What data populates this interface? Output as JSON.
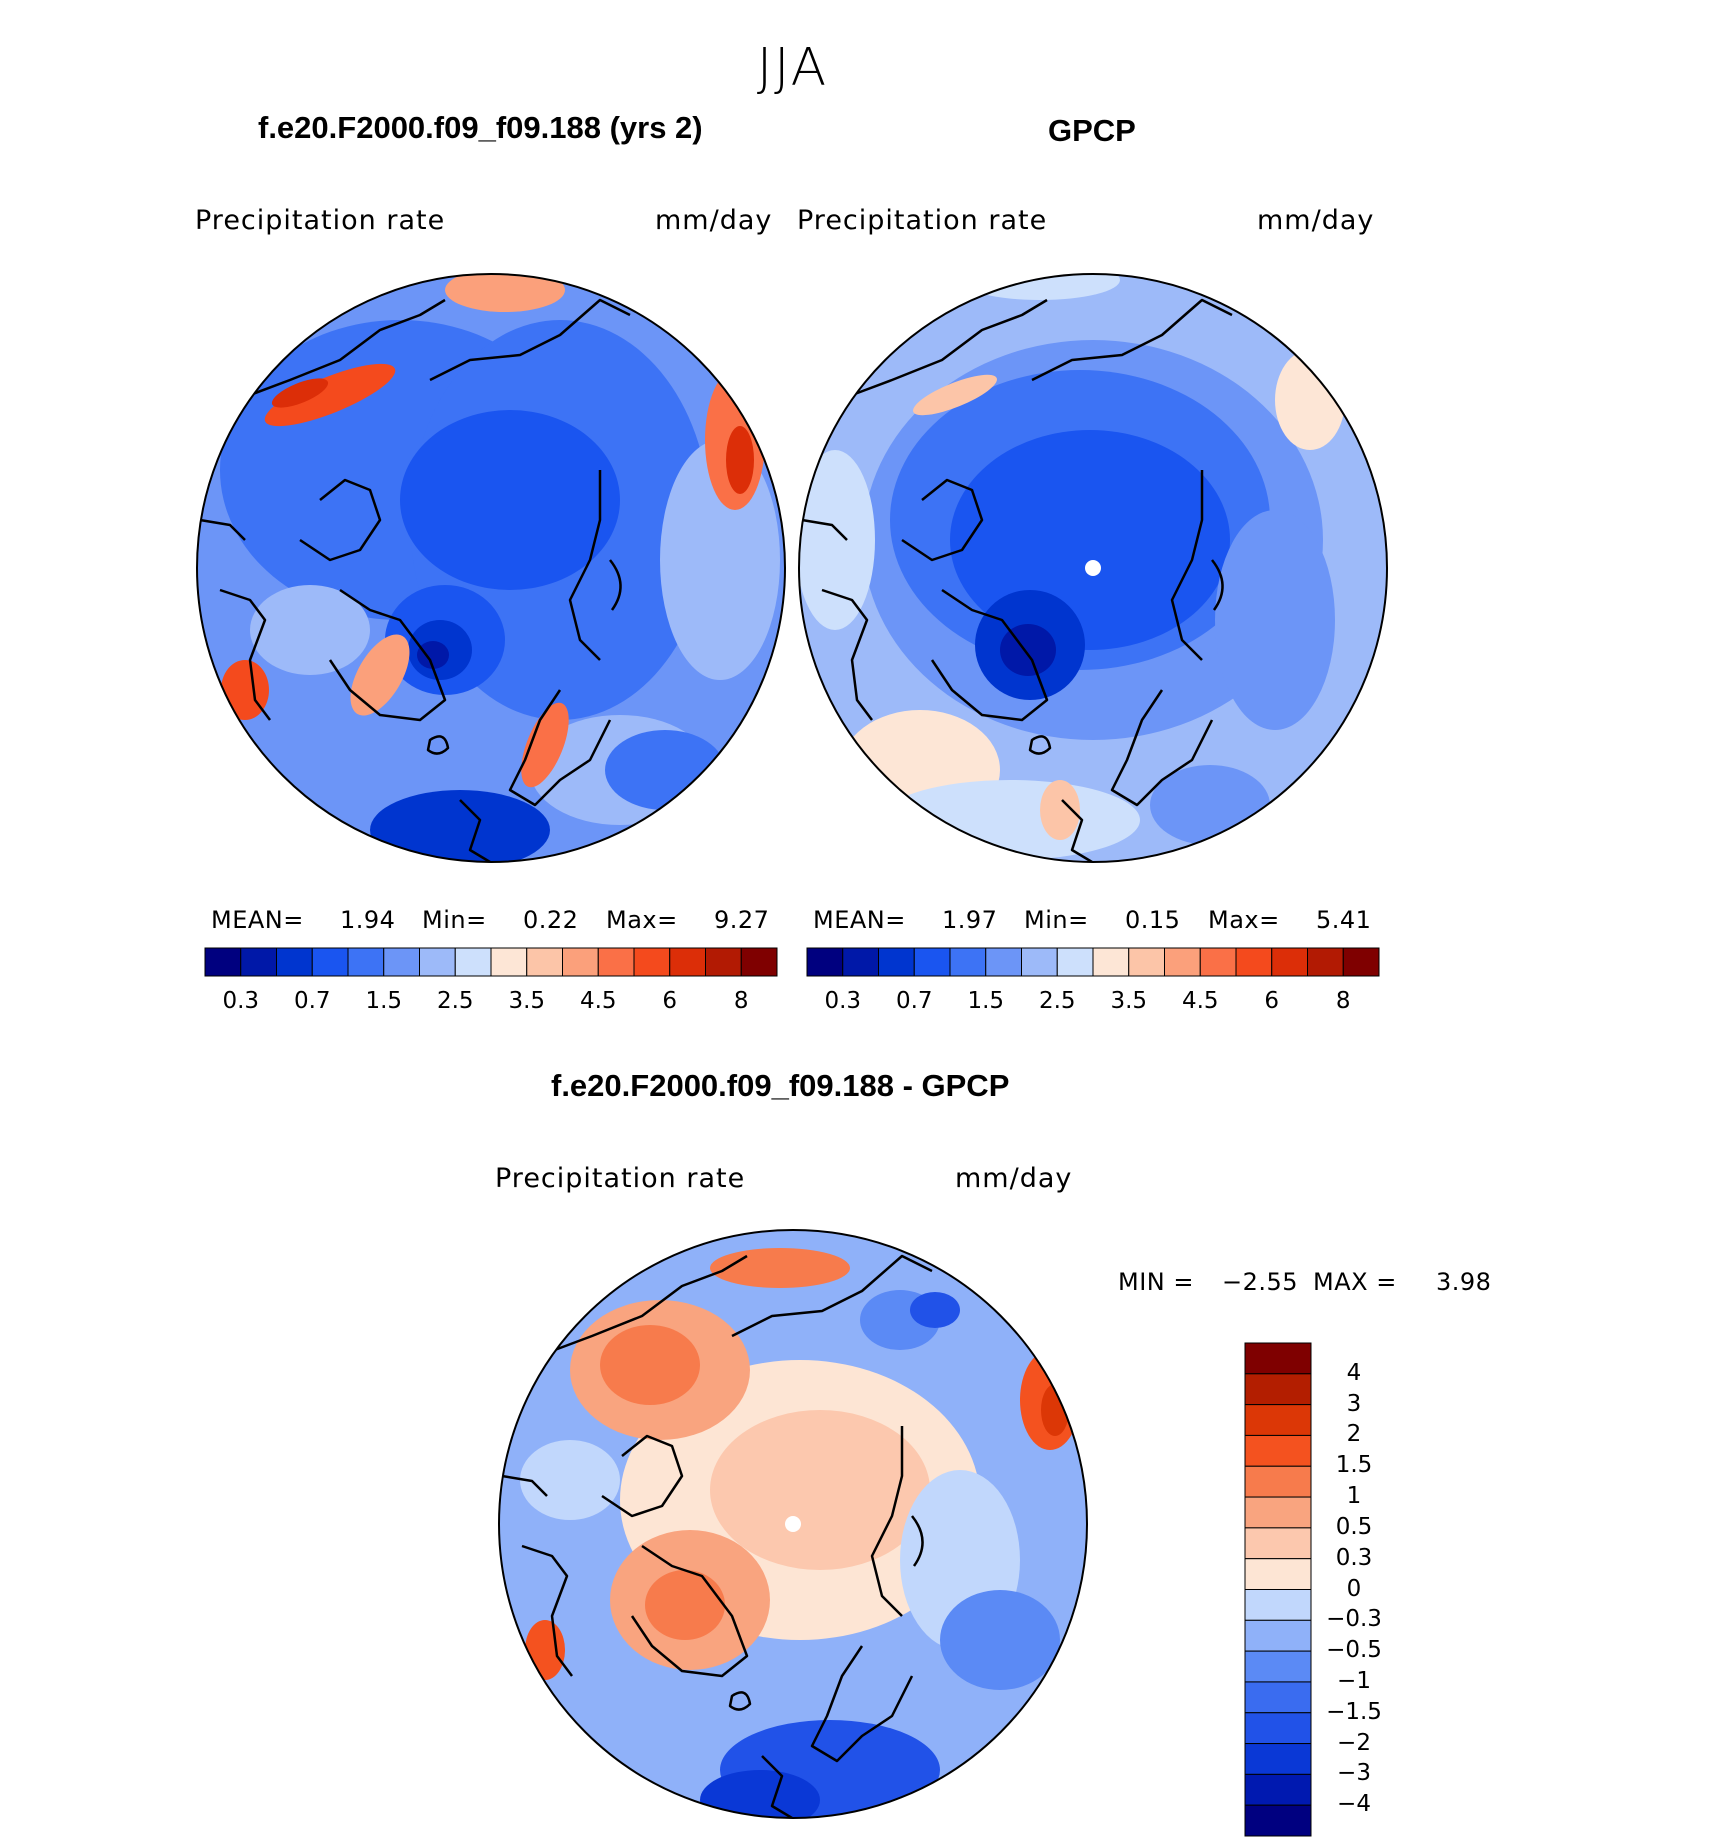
{
  "page_title": "JJA",
  "panels": [
    {
      "title": "f.e20.F2000.f09_f09.188 (yrs 2)",
      "left_label": "Precipitation  rate",
      "right_label": "mm/day",
      "stats": {
        "mean_label": "MEAN=",
        "mean": "1.94",
        "min_label": "Min=",
        "min": "0.22",
        "max_label": "Max=",
        "max": "9.27"
      }
    },
    {
      "title": "GPCP",
      "left_label": "Precipitation  rate",
      "right_label": "mm/day",
      "stats": {
        "mean_label": "MEAN=",
        "mean": "1.97",
        "min_label": "Min=",
        "min": "0.15",
        "max_label": "Max=",
        "max": "5.41"
      }
    },
    {
      "title": "f.e20.F2000.f09_f09.188 - GPCP",
      "left_label": "Precipitation  rate",
      "right_label": "mm/day",
      "stats": {
        "min_label": "MIN =",
        "min": "−2.55",
        "max_label": "MAX =",
        "max": "3.98"
      }
    }
  ],
  "abs_colorbar": {
    "colors": [
      "#00007f",
      "#0018a8",
      "#0035cf",
      "#1a55f0",
      "#3d73f5",
      "#6c95f7",
      "#9dbaf9",
      "#cde0fc",
      "#fde6d6",
      "#fcc5a8",
      "#fba07b",
      "#fa7047",
      "#f44a1d",
      "#dc2e08",
      "#b21a03",
      "#7f0000"
    ],
    "ticks": [
      "0.3",
      "0.7",
      "1.5",
      "2.5",
      "3.5",
      "4.5",
      "6",
      "8"
    ]
  },
  "diff_colorbar": {
    "colors": [
      "#000080",
      "#0019b0",
      "#0a38d6",
      "#2152e8",
      "#3a6cf0",
      "#5b8af5",
      "#8fb1f9",
      "#c1d7fc",
      "#fde5d4",
      "#fcc8ae",
      "#f9a47f",
      "#f77b4c",
      "#f4521f",
      "#dc3706",
      "#b31e00",
      "#7f0000"
    ],
    "ticks": [
      "4",
      "3",
      "2",
      "1.5",
      "1",
      "0.5",
      "0.3",
      "0",
      "−0.3",
      "−0.5",
      "−1",
      "−1.5",
      "−2",
      "−3",
      "−4"
    ]
  },
  "legend_icons": [
    "coastline-outline-icon",
    "north-pole-missing-data-dot-icon"
  ]
}
